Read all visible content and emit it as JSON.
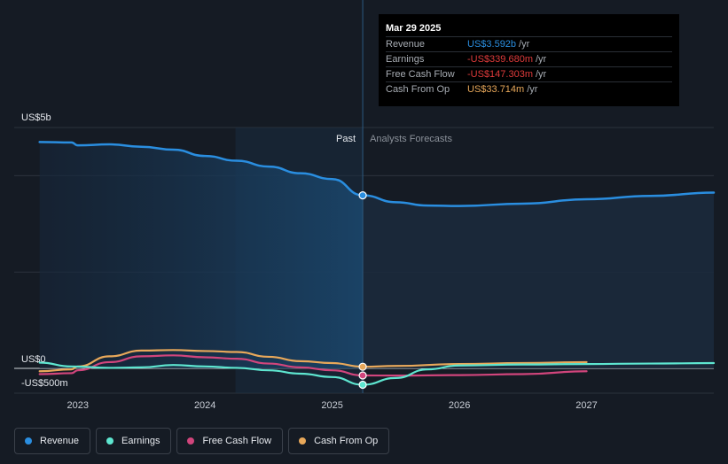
{
  "colors": {
    "revenue": "#2a8ee0",
    "earnings": "#5ee6d0",
    "free_cash_flow": "#d1457c",
    "cash_from_op": "#e8a85a",
    "background": "#151b24",
    "past_fill": "#1a3550",
    "forecast_fill": "#1b2a3c"
  },
  "tooltip": {
    "date": "Mar 29 2025",
    "rows": [
      {
        "label": "Revenue",
        "value": "US$3.592b",
        "unit": "/yr",
        "color": "#2a8ee0"
      },
      {
        "label": "Earnings",
        "value": "-US$339.680m",
        "unit": "/yr",
        "color": "#e03b3b"
      },
      {
        "label": "Free Cash Flow",
        "value": "-US$147.303m",
        "unit": "/yr",
        "color": "#e03b3b"
      },
      {
        "label": "Cash From Op",
        "value": "US$33.714m",
        "unit": "/yr",
        "color": "#e8a85a"
      }
    ]
  },
  "labels": {
    "past": "Past",
    "forecast": "Analysts Forecasts"
  },
  "legend": [
    {
      "label": "Revenue",
      "color": "#2a8ee0"
    },
    {
      "label": "Earnings",
      "color": "#5ee6d0"
    },
    {
      "label": "Free Cash Flow",
      "color": "#d1457c"
    },
    {
      "label": "Cash From Op",
      "color": "#e8a85a"
    }
  ],
  "chart_data": {
    "type": "line",
    "y_tick_labels": [
      "US$5b",
      "US$0",
      "-US$500m"
    ],
    "x_tick_labels": [
      "2023",
      "2024",
      "2025",
      "2026",
      "2027"
    ],
    "ylim": [
      -500,
      5000
    ],
    "xlim": [
      2022.5,
      2028.0
    ],
    "divider_x": 2025.24,
    "grid": true,
    "legend_position": "bottom",
    "series": [
      {
        "name": "Revenue",
        "color": "#2a8ee0",
        "x": [
          2022.7,
          2022.95,
          2023.0,
          2023.25,
          2023.5,
          2023.75,
          2024.0,
          2024.25,
          2024.5,
          2024.75,
          2025.0,
          2025.24,
          2025.5,
          2025.75,
          2026.0,
          2026.5,
          2027.0,
          2027.5,
          2028.0
        ],
        "y": [
          4700,
          4690,
          4630,
          4650,
          4600,
          4540,
          4410,
          4310,
          4190,
          4050,
          3930,
          3592,
          3450,
          3380,
          3370,
          3420,
          3510,
          3580,
          3650
        ]
      },
      {
        "name": "Earnings",
        "color": "#5ee6d0",
        "x": [
          2022.7,
          2022.95,
          2023.25,
          2023.5,
          2023.75,
          2024.0,
          2024.25,
          2024.5,
          2024.75,
          2025.0,
          2025.24,
          2025.5,
          2025.75,
          2026.0,
          2026.5,
          2027.0,
          2027.5,
          2028.0
        ],
        "y": [
          120,
          40,
          10,
          20,
          70,
          40,
          10,
          -40,
          -110,
          -180,
          -339.68,
          -200,
          -20,
          60,
          80,
          90,
          100,
          110
        ]
      },
      {
        "name": "Free Cash Flow",
        "color": "#d1457c",
        "x": [
          2022.7,
          2022.95,
          2023.0,
          2023.25,
          2023.5,
          2023.75,
          2024.0,
          2024.25,
          2024.5,
          2024.75,
          2025.0,
          2025.24,
          2025.5,
          2026.0,
          2026.5,
          2027.0
        ],
        "y": [
          -120,
          -100,
          -40,
          130,
          250,
          270,
          230,
          200,
          100,
          20,
          -40,
          -147.303,
          -150,
          -140,
          -120,
          -60
        ]
      },
      {
        "name": "Cash From Op",
        "color": "#e8a85a",
        "x": [
          2022.7,
          2022.95,
          2023.0,
          2023.25,
          2023.5,
          2023.75,
          2024.0,
          2024.25,
          2024.5,
          2024.75,
          2025.0,
          2025.24,
          2025.5,
          2026.0,
          2026.5,
          2027.0
        ],
        "y": [
          -60,
          -20,
          40,
          250,
          370,
          380,
          360,
          340,
          240,
          150,
          110,
          33.714,
          50,
          90,
          110,
          130
        ]
      }
    ]
  }
}
